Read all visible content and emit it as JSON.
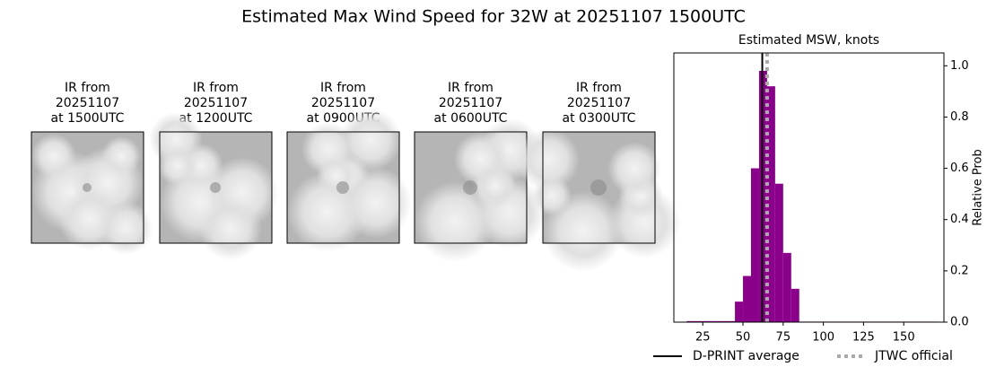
{
  "title": "Estimated Max Wind Speed for 32W at 20251107 1500UTC",
  "images": [
    {
      "title": [
        "IR from",
        "20251107",
        "at 1500UTC"
      ]
    },
    {
      "title": [
        "IR from",
        "20251107",
        "at 1200UTC"
      ]
    },
    {
      "title": [
        "IR from",
        "20251107",
        "at 0900UTC"
      ]
    },
    {
      "title": [
        "IR from",
        "20251107",
        "at 0600UTC"
      ]
    },
    {
      "title": [
        "IR from",
        "20251107",
        "at 0300UTC"
      ]
    }
  ],
  "chart_data": {
    "type": "histogram",
    "title": "Estimated MSW, knots",
    "y_label": "Relative Prob",
    "bins": [
      15,
      20,
      25,
      30,
      35,
      40,
      45,
      50,
      55,
      60,
      65,
      70,
      75,
      80,
      85,
      90,
      95,
      100,
      105,
      110,
      115,
      120,
      125,
      130,
      135,
      140,
      145,
      150,
      155,
      160,
      165,
      170
    ],
    "counts": [
      0.004,
      0.004,
      0.004,
      0.004,
      0.004,
      0.004,
      0.08,
      0.18,
      0.6,
      0.98,
      0.92,
      0.54,
      0.27,
      0.13,
      0.002,
      0.002,
      0.002,
      0.002,
      0.002,
      0.002,
      0.002,
      0.002,
      0.002,
      0.002,
      0.002,
      0.002,
      0.002,
      0.002,
      0.002,
      0.002,
      0.002
    ],
    "color": "#8b008b",
    "xlim": [
      7,
      175
    ],
    "ylim": [
      0,
      1.05
    ],
    "xticks": [
      25,
      50,
      75,
      100,
      125,
      150
    ],
    "yticks": [
      {
        "value": 0,
        "label": "0.0"
      },
      {
        "value": 0.2,
        "label": "0.2"
      },
      {
        "value": 0.4,
        "label": "0.4"
      },
      {
        "value": 0.6,
        "label": "0.6"
      },
      {
        "value": 0.8,
        "label": "0.8"
      },
      {
        "value": 1.0,
        "label": "1.0"
      }
    ],
    "reference_lines": [
      {
        "name": "D-PRINT average",
        "value": 62,
        "color": "#000000",
        "style": "solid"
      },
      {
        "name": "JTWC official",
        "value": 65,
        "color": "#aaaaaa",
        "style": "dotted"
      }
    ]
  }
}
